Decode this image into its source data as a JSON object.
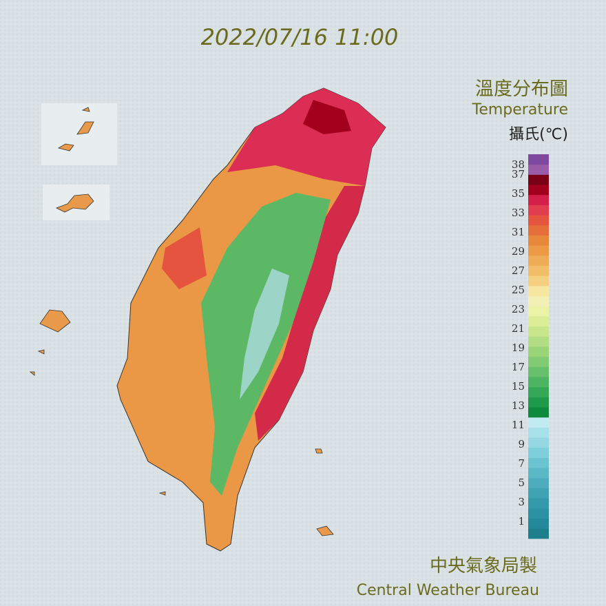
{
  "timestamp": "2022/07/16 11:00",
  "title": "溫度分布圖",
  "subtitle": "Temperature",
  "unit": "攝氏(℃)",
  "legend": {
    "labels": [
      38,
      37,
      35,
      33,
      31,
      29,
      27,
      25,
      23,
      21,
      19,
      17,
      15,
      13,
      11,
      9,
      7,
      5,
      3,
      1
    ],
    "colors": [
      "#1e7f8c",
      "#23889a",
      "#2a92a3",
      "#3399ab",
      "#3fa3b4",
      "#4dadbe",
      "#5bb8c7",
      "#6cc3d1",
      "#7fcedb",
      "#95d8e3",
      "#a9e1ea",
      "#c2ebf1",
      "#0e8a3e",
      "#1f9a4b",
      "#35a857",
      "#4db563",
      "#68c06c",
      "#82ca73",
      "#9cd47a",
      "#b3dd82",
      "#c8e68b",
      "#dbee97",
      "#ebf3a6",
      "#f3f0b6",
      "#f6e6a0",
      "#f4d080",
      "#f2be6a",
      "#efac56",
      "#ec9a45",
      "#e8883a",
      "#e66e3a",
      "#e4543f",
      "#e23d4e",
      "#d41f4a",
      "#a3001e",
      "#7a0016",
      "#9a5ca8",
      "#8049a0"
    ]
  },
  "credit": {
    "zh": "中央氣象局製",
    "en": "Central Weather Bureau"
  }
}
